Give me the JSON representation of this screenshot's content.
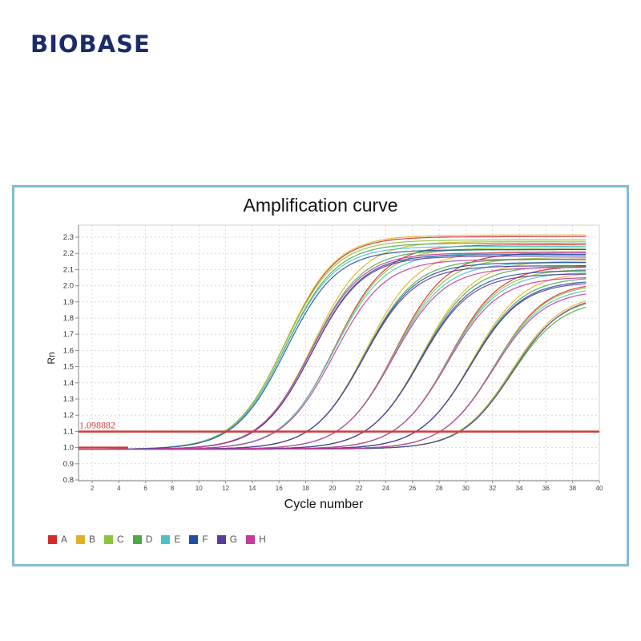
{
  "brand": {
    "logo_text": "BIOBASE",
    "color": "#1b2b6b"
  },
  "frame": {
    "border_color": "#82bcd6"
  },
  "chart_data": {
    "type": "line",
    "title": "Amplification curve",
    "xlabel": "Cycle number",
    "ylabel": "Rn",
    "xlim": [
      1,
      40
    ],
    "ylim": [
      0.8,
      2.35
    ],
    "x_ticks": [
      2,
      4,
      6,
      8,
      10,
      12,
      14,
      16,
      18,
      20,
      22,
      24,
      26,
      28,
      30,
      32,
      34,
      36,
      38,
      40
    ],
    "y_ticks": [
      0.8,
      0.9,
      1.0,
      1.1,
      1.2,
      1.3,
      1.4,
      1.5,
      1.6,
      1.7,
      1.8,
      1.9,
      2.0,
      2.1,
      2.2,
      2.3
    ],
    "grid": true,
    "legend_position": "bottom-left",
    "threshold": {
      "value": 1.098882,
      "label": "1.098882",
      "color": "#d33a3a"
    },
    "x_range_data": [
      1,
      39
    ],
    "baseline": 0.99,
    "approx_ct_groups": [
      11.9,
      14.0,
      15.7,
      18.1,
      20.3,
      22.4,
      24.5,
      26.3,
      28.1,
      29.5
    ],
    "series": [
      {
        "name": "A",
        "color": "#d42a2a",
        "ct": [
          11.9,
          15.7,
          20.3,
          24.5,
          28.1
        ],
        "plateau": [
          2.3,
          2.25,
          2.2,
          2.12,
          2.02
        ]
      },
      {
        "name": "B",
        "color": "#e0b02a",
        "ct": [
          11.9,
          14.0,
          18.1,
          22.4,
          26.3,
          29.5
        ],
        "plateau": [
          2.31,
          2.27,
          2.21,
          2.15,
          2.08,
          1.95
        ]
      },
      {
        "name": "C",
        "color": "#8cc43c",
        "ct": [
          11.9,
          15.7,
          20.3,
          24.5,
          28.1,
          29.5
        ],
        "plateau": [
          2.28,
          2.23,
          2.17,
          2.1,
          2.01,
          1.93
        ]
      },
      {
        "name": "D",
        "color": "#4aaa48",
        "ct": [
          12.0,
          14.0,
          18.1,
          22.4,
          26.3,
          29.6
        ],
        "plateau": [
          2.26,
          2.22,
          2.16,
          2.12,
          2.05,
          1.91
        ]
      },
      {
        "name": "E",
        "color": "#4fc0c8",
        "ct": [
          12.0,
          15.7,
          20.3,
          24.5,
          28.1
        ],
        "plateau": [
          2.24,
          2.2,
          2.14,
          2.08,
          1.99
        ]
      },
      {
        "name": "F",
        "color": "#1f4fa0",
        "ct": [
          12.1,
          14.1,
          18.1,
          22.4,
          26.3
        ],
        "plateau": [
          2.22,
          2.19,
          2.14,
          2.09,
          2.03
        ]
      },
      {
        "name": "G",
        "color": "#5a3c9c",
        "ct": [
          14.1,
          18.1,
          22.4,
          26.3,
          29.6
        ],
        "plateau": [
          2.18,
          2.12,
          2.07,
          2.02,
          1.94
        ]
      },
      {
        "name": "H",
        "color": "#c43a9a",
        "ct": [
          14.0,
          15.8,
          20.3,
          24.5,
          28.1
        ],
        "plateau": [
          2.2,
          2.16,
          2.11,
          2.05,
          1.97
        ]
      }
    ]
  },
  "legend": {
    "items": [
      {
        "label": "A",
        "color": "#d42a2a"
      },
      {
        "label": "B",
        "color": "#e0b02a"
      },
      {
        "label": "C",
        "color": "#8cc43c"
      },
      {
        "label": "D",
        "color": "#4aaa48"
      },
      {
        "label": "E",
        "color": "#4fc0c8"
      },
      {
        "label": "F",
        "color": "#1f4fa0"
      },
      {
        "label": "G",
        "color": "#5a3c9c"
      },
      {
        "label": "H",
        "color": "#c43a9a"
      }
    ]
  }
}
